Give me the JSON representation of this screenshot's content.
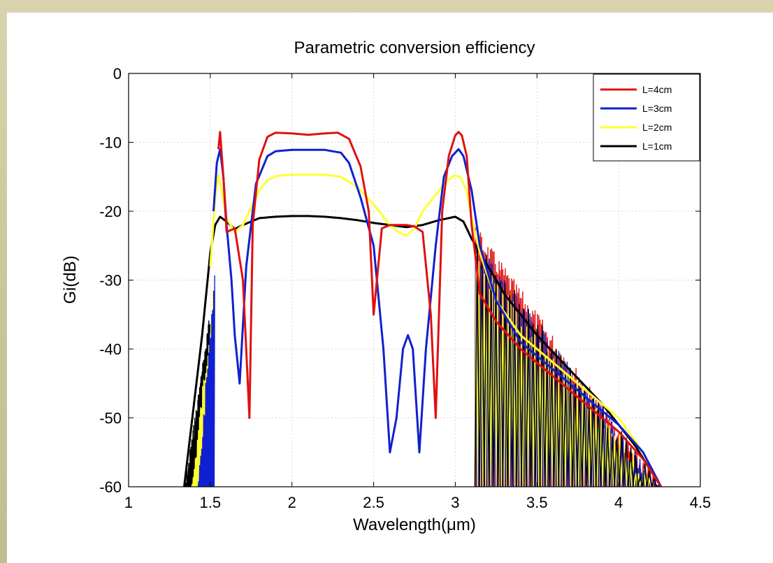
{
  "chart_data": {
    "type": "line",
    "title": "Parametric conversion efficiency",
    "xlabel": "Wavelength(μm)",
    "ylabel": "Gi(dB)",
    "xlim": [
      1,
      4.5
    ],
    "ylim": [
      -60,
      0
    ],
    "xticks": [
      1,
      1.5,
      2,
      2.5,
      3,
      3.5,
      4,
      4.5
    ],
    "yticks": [
      0,
      -10,
      -20,
      -30,
      -40,
      -50,
      -60
    ],
    "xtick_labels": [
      "1",
      "1.5",
      "2",
      "2.5",
      "3",
      "3.5",
      "4",
      "4.5"
    ],
    "ytick_labels": [
      "0",
      "-10",
      "-20",
      "-30",
      "-40",
      "-50",
      "-60"
    ],
    "grid": true,
    "legend_position": "top-right",
    "series": [
      {
        "name": "L=4cm",
        "color": "#e01010",
        "x": [
          1.55,
          1.56,
          1.58,
          1.6,
          1.65,
          1.7,
          1.74,
          1.76,
          1.8,
          1.85,
          1.9,
          2.0,
          2.1,
          2.2,
          2.28,
          2.35,
          2.42,
          2.47,
          2.5,
          2.55,
          2.6,
          2.65,
          2.7,
          2.75,
          2.8,
          2.85,
          2.88,
          2.92,
          2.96,
          3.0,
          3.02,
          3.04,
          3.07,
          3.1,
          3.15,
          3.25,
          3.4,
          3.6,
          3.8,
          4.0,
          4.15,
          4.26
        ],
        "y": [
          -11.0,
          -8.5,
          -15.0,
          -23.0,
          -22.5,
          -30.0,
          -50.0,
          -22.0,
          -12.5,
          -9.2,
          -8.6,
          -8.7,
          -8.9,
          -8.7,
          -8.6,
          -9.5,
          -13.5,
          -20.0,
          -35.0,
          -22.5,
          -22.0,
          -22.0,
          -22.0,
          -22.2,
          -23.0,
          -35.0,
          -50.0,
          -20.0,
          -12.0,
          -9.0,
          -8.5,
          -9.0,
          -12.0,
          -22.0,
          -32.0,
          -36.0,
          -40.0,
          -44.0,
          -48.0,
          -52.0,
          -56.0,
          -60.0
        ]
      },
      {
        "name": "L=3cm",
        "color": "#1020d0",
        "x": [
          1.52,
          1.54,
          1.56,
          1.58,
          1.6,
          1.63,
          1.65,
          1.68,
          1.72,
          1.78,
          1.85,
          1.9,
          2.0,
          2.1,
          2.2,
          2.3,
          2.35,
          2.42,
          2.5,
          2.56,
          2.6,
          2.64,
          2.68,
          2.71,
          2.74,
          2.78,
          2.82,
          2.88,
          2.93,
          2.98,
          3.02,
          3.05,
          3.1,
          3.15,
          3.25,
          3.4,
          3.6,
          3.8,
          4.0,
          4.15,
          4.26
        ],
        "y": [
          -20.0,
          -13.0,
          -11.0,
          -15.0,
          -22.0,
          -30.0,
          -38.0,
          -45.0,
          -28.0,
          -16.0,
          -12.0,
          -11.3,
          -11.1,
          -11.1,
          -11.1,
          -11.5,
          -13.0,
          -18.0,
          -25.0,
          -40.0,
          -55.0,
          -50.0,
          -40.0,
          -38.0,
          -40.0,
          -55.0,
          -40.0,
          -25.0,
          -15.0,
          -12.0,
          -11.0,
          -12.0,
          -17.0,
          -25.0,
          -33.0,
          -39.0,
          -43.0,
          -47.0,
          -51.0,
          -55.0,
          -60.0
        ]
      },
      {
        "name": "L=2cm",
        "color": "#ffff30",
        "x": [
          1.5,
          1.53,
          1.55,
          1.57,
          1.6,
          1.65,
          1.7,
          1.75,
          1.8,
          1.85,
          1.9,
          2.0,
          2.1,
          2.2,
          2.3,
          2.4,
          2.5,
          2.6,
          2.65,
          2.7,
          2.75,
          2.8,
          2.9,
          2.95,
          3.0,
          3.03,
          3.07,
          3.1,
          3.15,
          3.25,
          3.4,
          3.6,
          3.8,
          4.0,
          4.15,
          4.26
        ],
        "y": [
          -28.0,
          -18.0,
          -14.8,
          -17.0,
          -21.0,
          -23.0,
          -22.0,
          -19.5,
          -17.0,
          -15.5,
          -14.9,
          -14.7,
          -14.7,
          -14.7,
          -15.0,
          -16.5,
          -19.0,
          -22.0,
          -23.0,
          -23.5,
          -22.5,
          -20.0,
          -17.0,
          -15.5,
          -14.8,
          -15.0,
          -17.0,
          -21.0,
          -26.0,
          -33.0,
          -38.0,
          -42.0,
          -46.0,
          -50.0,
          -55.0,
          -60.0
        ]
      },
      {
        "name": "L=1cm",
        "color": "#000000",
        "x": [
          1.34,
          1.4,
          1.45,
          1.5,
          1.53,
          1.56,
          1.6,
          1.65,
          1.7,
          1.8,
          1.9,
          2.0,
          2.1,
          2.2,
          2.3,
          2.4,
          2.5,
          2.6,
          2.7,
          2.8,
          2.9,
          3.0,
          3.05,
          3.1,
          3.2,
          3.3,
          3.5,
          3.7,
          3.9,
          4.1,
          4.26
        ],
        "y": [
          -60.0,
          -48.0,
          -38.0,
          -26.0,
          -22.0,
          -20.8,
          -21.5,
          -22.6,
          -22.0,
          -21.0,
          -20.8,
          -20.7,
          -20.7,
          -20.8,
          -21.0,
          -21.3,
          -21.7,
          -22.0,
          -22.3,
          -22.0,
          -21.3,
          -20.8,
          -21.5,
          -24.0,
          -28.0,
          -32.0,
          -38.0,
          -43.0,
          -48.0,
          -54.0,
          -60.0
        ]
      }
    ],
    "noise_bands": [
      {
        "series": "L=1cm",
        "color": "#000000",
        "x_range": [
          1.34,
          1.5
        ],
        "top": -34,
        "count": 60
      },
      {
        "series": "L=2cm",
        "color": "#ffff30",
        "x_range": [
          1.38,
          1.52
        ],
        "top": -30,
        "count": 22
      },
      {
        "series": "L=3cm",
        "color": "#1020d0",
        "x_range": [
          1.42,
          1.53
        ],
        "top": -26,
        "count": 18
      },
      {
        "series": "L=4cm",
        "color": "#e01010",
        "x_range": [
          3.12,
          4.26
        ],
        "top": -22,
        "count": 150
      },
      {
        "series": "L=3cm",
        "color": "#1020d0",
        "x_range": [
          3.12,
          4.26
        ],
        "top": -24,
        "count": 110
      },
      {
        "series": "L=2cm",
        "color": "#ffff30",
        "x_range": [
          3.12,
          4.26
        ],
        "top": -26,
        "count": 70
      },
      {
        "series": "L=1cm",
        "color": "#000000",
        "x_range": [
          3.12,
          4.26
        ],
        "top": -24,
        "count": 40
      }
    ]
  }
}
